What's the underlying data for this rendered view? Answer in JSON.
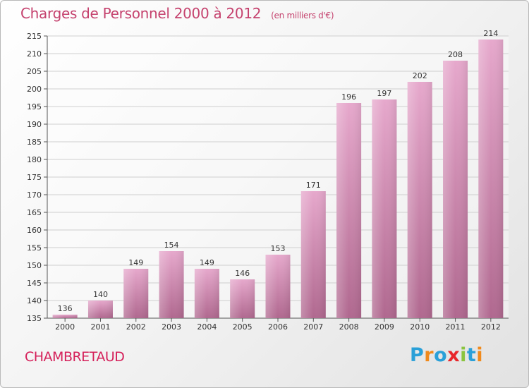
{
  "header": {
    "title": "Charges de Personnel 2000 à 2012",
    "subtitle": "(en milliers d'€)"
  },
  "footer": {
    "city": "CHAMBRETAUD",
    "logo_text": "Proxiti"
  },
  "colors": {
    "title": "#c5426e",
    "city": "#d5205a",
    "bar_top": "#e6a8cc",
    "bar_bottom": "#b0688f"
  },
  "chart_data": {
    "type": "bar",
    "title": "Charges de Personnel 2000 à 2012",
    "subtitle": "(en milliers d'€)",
    "xlabel": "",
    "ylabel": "",
    "categories": [
      "2000",
      "2001",
      "2002",
      "2003",
      "2004",
      "2005",
      "2006",
      "2007",
      "2008",
      "2009",
      "2010",
      "2011",
      "2012"
    ],
    "values": [
      136,
      140,
      149,
      154,
      149,
      146,
      153,
      171,
      196,
      197,
      202,
      208,
      214
    ],
    "ylim": [
      135,
      215
    ],
    "yticks": [
      135,
      140,
      145,
      150,
      155,
      160,
      165,
      170,
      175,
      180,
      185,
      190,
      195,
      200,
      205,
      210,
      215
    ],
    "grid": true
  }
}
